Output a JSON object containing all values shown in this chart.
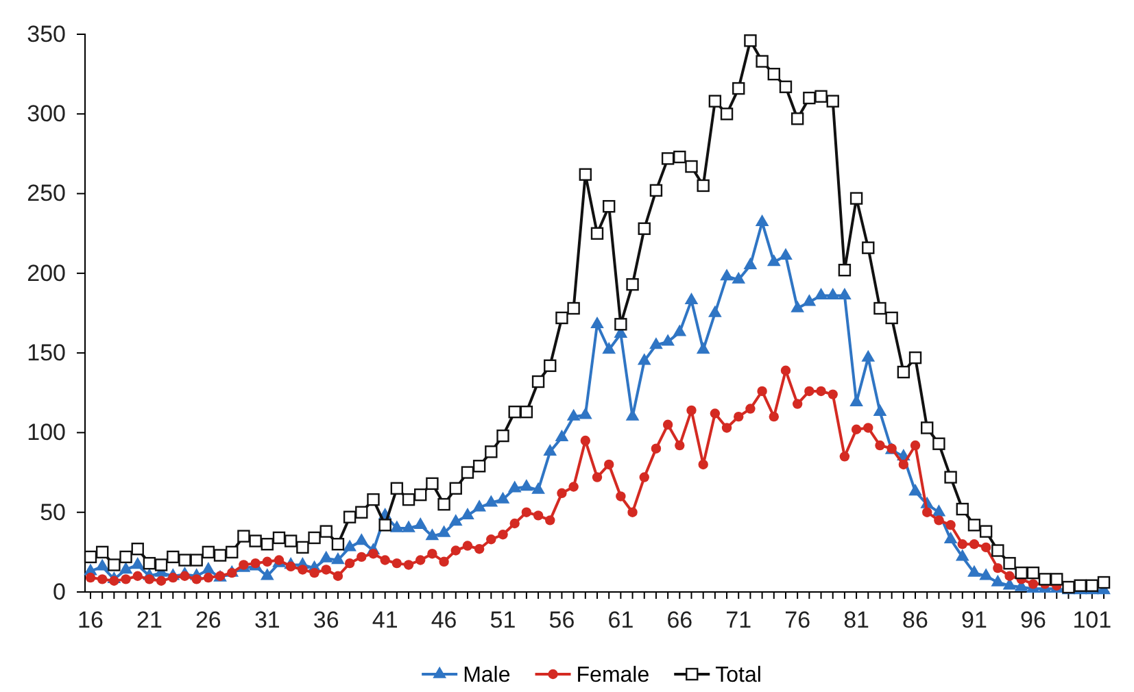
{
  "chart_data": {
    "type": "line",
    "categories": [
      "16",
      null,
      null,
      null,
      null,
      "21",
      null,
      null,
      null,
      null,
      "26",
      null,
      null,
      null,
      null,
      "31",
      null,
      null,
      null,
      null,
      "36",
      null,
      null,
      null,
      null,
      "41",
      null,
      null,
      null,
      null,
      "46",
      null,
      null,
      null,
      null,
      "51",
      null,
      null,
      null,
      null,
      "56",
      null,
      null,
      null,
      null,
      "61",
      null,
      null,
      null,
      null,
      "66",
      null,
      null,
      null,
      null,
      "71",
      null,
      null,
      null,
      null,
      "76",
      null,
      null,
      null,
      null,
      "81",
      null,
      null,
      null,
      null,
      "86",
      null,
      null,
      null,
      null,
      "91",
      null,
      null,
      null,
      null,
      "96",
      null,
      null,
      null,
      null,
      "101",
      null
    ],
    "ylim": [
      0,
      350
    ],
    "yticks": [
      0,
      50,
      100,
      150,
      200,
      250,
      300,
      350
    ],
    "grid": false,
    "legend": "bottom",
    "line_style": "solid",
    "series": [
      {
        "name": "Male",
        "color": "#2f75c4",
        "marker": "triangle",
        "values": [
          13,
          16,
          8,
          14,
          17,
          10,
          12,
          10,
          11,
          10,
          14,
          9,
          12,
          15,
          16,
          10,
          18,
          17,
          17,
          15,
          21,
          20,
          28,
          32,
          26,
          48,
          40,
          40,
          42,
          35,
          37,
          44,
          48,
          53,
          56,
          58,
          65,
          66,
          64,
          88,
          97,
          110,
          111,
          168,
          152,
          162,
          110,
          145,
          155,
          157,
          163,
          183,
          152,
          175,
          198,
          196,
          205,
          232,
          207,
          211,
          178,
          182,
          186,
          186,
          186,
          119,
          147,
          113,
          89,
          85,
          63,
          55,
          50,
          33,
          22,
          12,
          10,
          6,
          4,
          3,
          2,
          2,
          2,
          1,
          1,
          1,
          1
        ]
      },
      {
        "name": "Female",
        "color": "#d42a22",
        "marker": "circle",
        "values": [
          9,
          8,
          7,
          8,
          10,
          8,
          7,
          9,
          10,
          8,
          9,
          10,
          12,
          17,
          18,
          19,
          20,
          16,
          14,
          12,
          14,
          10,
          18,
          22,
          24,
          20,
          18,
          17,
          20,
          24,
          19,
          26,
          29,
          27,
          33,
          36,
          43,
          50,
          48,
          45,
          62,
          66,
          95,
          72,
          80,
          60,
          50,
          72,
          90,
          105,
          92,
          114,
          80,
          112,
          103,
          110,
          115,
          126,
          110,
          139,
          118,
          126,
          126,
          124,
          85,
          102,
          103,
          92,
          90,
          80,
          92,
          50,
          45,
          42,
          30,
          30,
          28,
          15,
          10,
          8,
          5,
          5,
          4,
          null,
          null,
          null,
          null
        ]
      },
      {
        "name": "Total",
        "color": "#111111",
        "marker": "square",
        "values": [
          22,
          25,
          17,
          22,
          27,
          18,
          17,
          22,
          20,
          20,
          25,
          23,
          25,
          35,
          32,
          30,
          34,
          32,
          28,
          34,
          38,
          30,
          47,
          50,
          58,
          42,
          65,
          58,
          61,
          68,
          55,
          65,
          75,
          79,
          88,
          98,
          113,
          113,
          132,
          142,
          172,
          178,
          262,
          225,
          242,
          168,
          193,
          228,
          252,
          272,
          273,
          267,
          255,
          308,
          300,
          316,
          346,
          333,
          325,
          317,
          297,
          310,
          311,
          308,
          202,
          247,
          216,
          178,
          172,
          138,
          147,
          103,
          93,
          72,
          52,
          42,
          38,
          26,
          18,
          12,
          12,
          8,
          8,
          3,
          4,
          4,
          6
        ]
      }
    ]
  }
}
